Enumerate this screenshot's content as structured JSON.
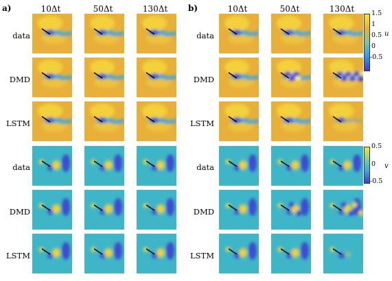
{
  "panels": [
    "a)",
    "b)"
  ],
  "columns": [
    "10Δt",
    "50Δt",
    "130Δt"
  ],
  "rows": [
    "data",
    "DMD",
    "LSTM",
    "data",
    "DMD",
    "LSTM"
  ],
  "colorbar_u": {
    "var": "u",
    "ticks": [
      "1.5",
      "1",
      "0.5",
      "0",
      "-0.5"
    ]
  },
  "colorbar_v": {
    "var": "v",
    "ticks": [
      "0.5",
      "0",
      "-0.5"
    ]
  },
  "colors": {
    "u_bg": "#e8b03a",
    "u_high": "#f4d63c",
    "u_wake": "#3fa8e0",
    "u_low": "#3b3bd6",
    "v_bg": "#3fb6c8",
    "v_pos": "#f2d23a",
    "v_neg": "#3a40d0"
  }
}
